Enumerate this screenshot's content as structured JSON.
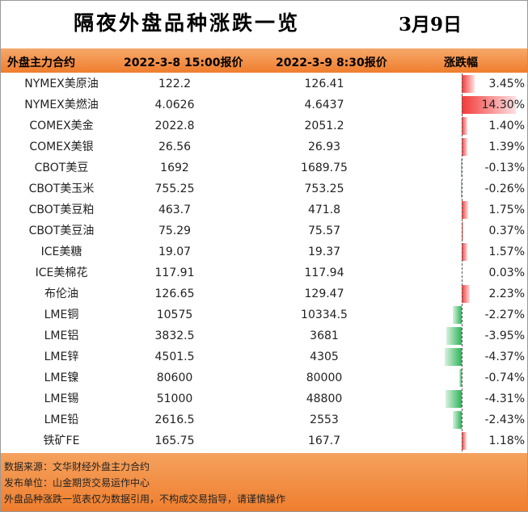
{
  "header": {
    "title": "隔夜外盘品种涨跌一览",
    "date": "3月9日"
  },
  "table": {
    "columns": [
      "外盘主力合约",
      "2022-3-8 15:00报价",
      "2022-3-9 8:30报价",
      "涨跌幅"
    ],
    "rows": [
      [
        "NYMEX美原油",
        "122.2",
        "126.41",
        {
          "value": 3.45,
          "label": "3.45%"
        }
      ],
      [
        "NYMEX美燃油",
        "4.0626",
        "4.6437",
        {
          "value": 14.3,
          "label": "14.30%"
        }
      ],
      [
        "COMEX美金",
        "2022.8",
        "2051.2",
        {
          "value": 1.4,
          "label": "1.40%"
        }
      ],
      [
        "COMEX美银",
        "26.56",
        "26.93",
        {
          "value": 1.39,
          "label": "1.39%"
        }
      ],
      [
        "CBOT美豆",
        "1692",
        "1689.75",
        {
          "value": -0.13,
          "label": "-0.13%"
        }
      ],
      [
        "CBOT美玉米",
        "755.25",
        "753.25",
        {
          "value": -0.26,
          "label": "-0.26%"
        }
      ],
      [
        "CBOT美豆粕",
        "463.7",
        "471.8",
        {
          "value": 1.75,
          "label": "1.75%"
        }
      ],
      [
        "CBOT美豆油",
        "75.29",
        "75.57",
        {
          "value": 0.37,
          "label": "0.37%"
        }
      ],
      [
        "ICE美糖",
        "19.07",
        "19.37",
        {
          "value": 1.57,
          "label": "1.57%"
        }
      ],
      [
        "ICE美棉花",
        "117.91",
        "117.94",
        {
          "value": 0.03,
          "label": "0.03%"
        }
      ],
      [
        "布伦油",
        "126.65",
        "129.47",
        {
          "value": 2.23,
          "label": "2.23%"
        }
      ],
      [
        "LME铜",
        "10575",
        "10334.5",
        {
          "value": -2.27,
          "label": "-2.27%"
        }
      ],
      [
        "LME铝",
        "3832.5",
        "3681",
        {
          "value": -3.95,
          "label": "-3.95%"
        }
      ],
      [
        "LME锌",
        "4501.5",
        "4305",
        {
          "value": -4.37,
          "label": "-4.37%"
        }
      ],
      [
        "LME镍",
        "80600",
        "80000",
        {
          "value": -0.74,
          "label": "-0.74%"
        }
      ],
      [
        "LME锡",
        "51000",
        "48800",
        {
          "value": -4.31,
          "label": "-4.31%"
        }
      ],
      [
        "LME铅",
        "2616.5",
        "2553",
        {
          "value": -2.43,
          "label": "-2.43%"
        }
      ],
      [
        "铁矿FE",
        "165.75",
        "167.7",
        {
          "value": 1.18,
          "label": "1.18%"
        }
      ]
    ]
  },
  "footer": {
    "lines": [
      "数据来源：文华财经外盘主力合约",
      "发布单位：山金期货交易运作中心",
      "外盘品种涨跌一览表仅为数据引用，不构成交易指导，请谨慎操作"
    ]
  }
}
